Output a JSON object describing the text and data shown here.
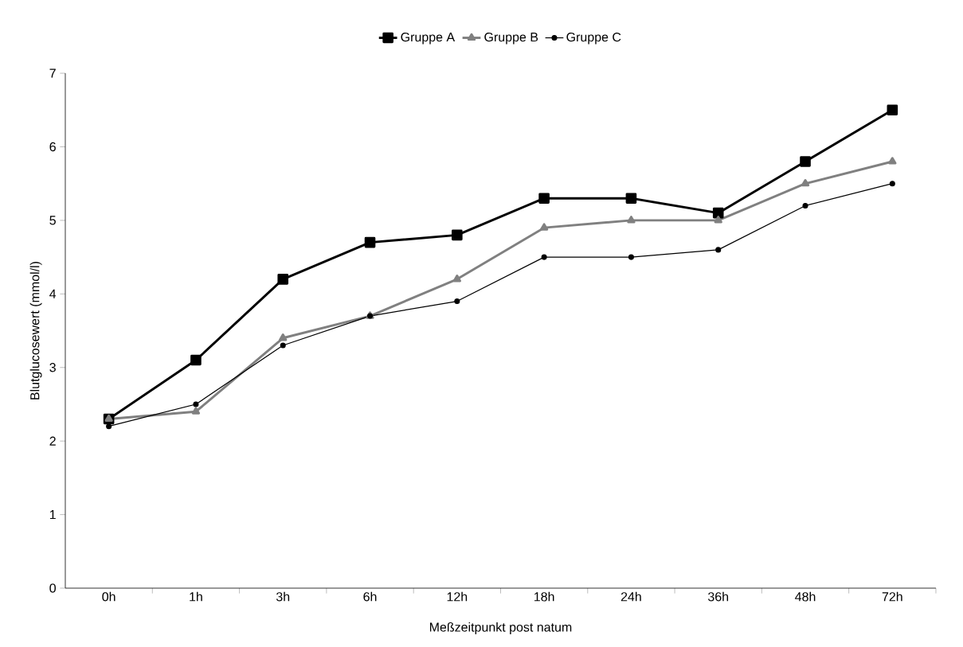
{
  "chart_data": {
    "type": "line",
    "xlabel": "Meßzeitpunkt post natum",
    "ylabel": "Blutglucosewert (mmol/l)",
    "categories": [
      "0h",
      "1h",
      "3h",
      "6h",
      "12h",
      "18h",
      "24h",
      "36h",
      "48h",
      "72h"
    ],
    "series": [
      {
        "name": "Gruppe A",
        "color": "#000000",
        "marker": "square",
        "values": [
          2.3,
          3.1,
          4.2,
          4.7,
          4.8,
          5.3,
          5.3,
          5.1,
          5.8,
          6.5
        ]
      },
      {
        "name": "Gruppe B",
        "color": "#808080",
        "marker": "triangle",
        "values": [
          2.3,
          2.4,
          3.4,
          3.7,
          4.2,
          4.9,
          5.0,
          5.0,
          5.5,
          5.8
        ]
      },
      {
        "name": "Gruppe C",
        "color": "#000000",
        "marker": "circle",
        "values": [
          2.2,
          2.5,
          3.3,
          3.7,
          3.9,
          4.5,
          4.5,
          4.6,
          5.2,
          5.5
        ]
      }
    ],
    "ylim": [
      0,
      7
    ],
    "yticks": [
      0,
      1,
      2,
      3,
      4,
      5,
      6,
      7
    ],
    "grid": false,
    "legend": "top",
    "line_style": "solid"
  }
}
